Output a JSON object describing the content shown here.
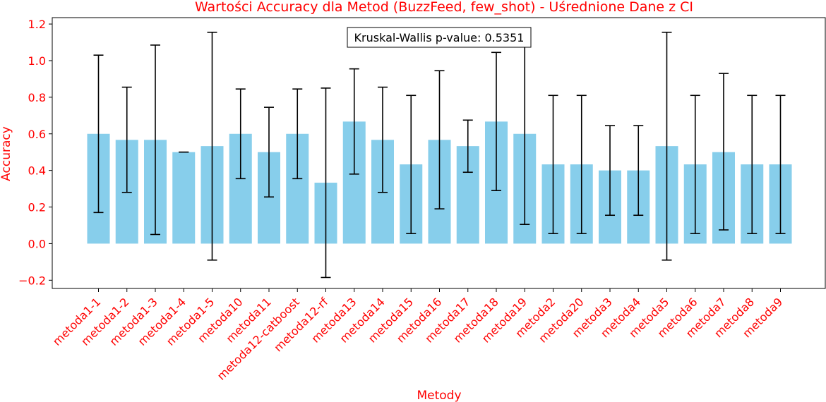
{
  "chart_data": {
    "type": "bar",
    "title": "Wartości Accuracy dla Metod (BuzzFeed, few_shot) - Uśrednione Dane z CI",
    "xlabel": "Metody",
    "ylabel": "Accuracy",
    "ylim": [
      -0.245,
      1.235
    ],
    "yticks": [
      -0.2,
      0.0,
      0.2,
      0.4,
      0.6,
      0.8,
      1.0,
      1.2
    ],
    "ytick_labels": [
      "−0.2",
      "0.0",
      "0.2",
      "0.4",
      "0.6",
      "0.8",
      "1.0",
      "1.2"
    ],
    "categories": [
      "metoda1-1",
      "metoda1-2",
      "metoda1-3",
      "metoda1-4",
      "metoda1-5",
      "metoda10",
      "metoda11",
      "metoda12-catboost",
      "metoda12-rf",
      "metoda13",
      "metoda14",
      "metoda15",
      "metoda16",
      "metoda17",
      "metoda18",
      "metoda19",
      "metoda2",
      "metoda20",
      "metoda3",
      "metoda4",
      "metoda5",
      "metoda6",
      "metoda7",
      "metoda8",
      "metoda9"
    ],
    "values": [
      0.6,
      0.567,
      0.567,
      0.5,
      0.533,
      0.6,
      0.5,
      0.6,
      0.333,
      0.667,
      0.567,
      0.433,
      0.567,
      0.533,
      0.667,
      0.6,
      0.433,
      0.433,
      0.4,
      0.4,
      0.533,
      0.433,
      0.5,
      0.433,
      0.433
    ],
    "ci_lower": [
      0.17,
      0.28,
      0.05,
      0.5,
      -0.09,
      0.355,
      0.255,
      0.355,
      -0.185,
      0.38,
      0.28,
      0.055,
      0.19,
      0.39,
      0.29,
      0.105,
      0.055,
      0.055,
      0.155,
      0.155,
      -0.09,
      0.055,
      0.075,
      0.055,
      0.055
    ],
    "ci_upper": [
      1.03,
      0.855,
      1.085,
      0.5,
      1.155,
      0.845,
      0.745,
      0.845,
      0.85,
      0.955,
      0.855,
      0.81,
      0.945,
      0.675,
      1.045,
      1.095,
      0.81,
      0.81,
      0.645,
      0.645,
      1.155,
      0.81,
      0.93,
      0.81,
      0.81
    ],
    "annotation": "Kruskal-Wallis p-value: 0.5351",
    "grid": false,
    "colors": {
      "bar": "#87ceeb",
      "errorbar": "#000000",
      "text": "#ff0000"
    }
  }
}
